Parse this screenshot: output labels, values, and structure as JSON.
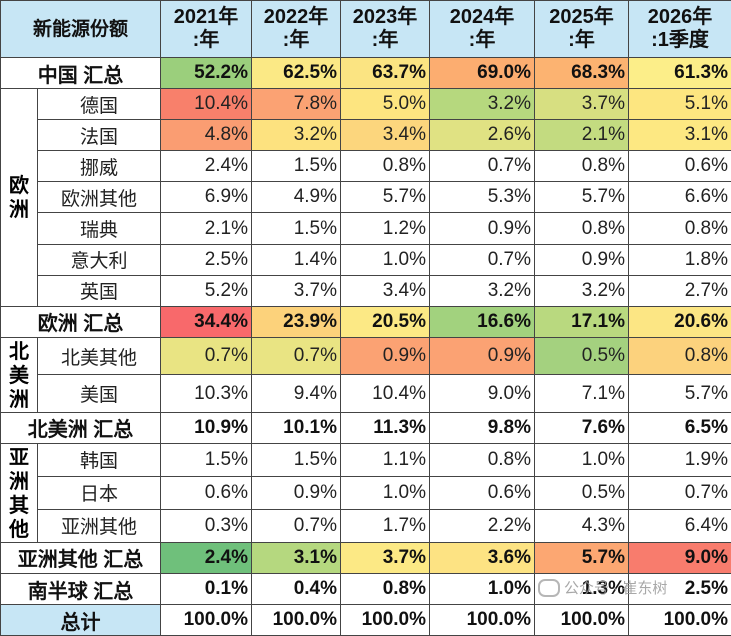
{
  "header": {
    "corner": "新能源份额",
    "columns": [
      {
        "line1": "2021年",
        "line2": ":年"
      },
      {
        "line1": "2022年",
        "line2": ":年"
      },
      {
        "line1": "2023年",
        "line2": ":年"
      },
      {
        "line1": "2024年",
        "line2": ":年"
      },
      {
        "line1": "2025年",
        "line2": ":年"
      },
      {
        "line1": "2026年",
        "line2": ":1季度"
      }
    ]
  },
  "rows": [
    {
      "kind": "total",
      "label": "中国 汇总",
      "values": [
        "52.2%",
        "62.5%",
        "63.7%",
        "69.0%",
        "68.3%",
        "61.3%"
      ],
      "colors": [
        "#9bcf7c",
        "#fbe985",
        "#fbe482",
        "#fcad70",
        "#fcb371",
        "#fcee89"
      ]
    },
    {
      "kind": "item",
      "group": "欧洲",
      "label": "德国",
      "values": [
        "10.4%",
        "7.8%",
        "5.0%",
        "3.2%",
        "3.7%",
        "5.1%"
      ],
      "colors": [
        "#f8806b",
        "#fba273",
        "#fde580",
        "#b6d87e",
        "#d7df81",
        "#fde680"
      ]
    },
    {
      "kind": "item",
      "group": "欧洲",
      "label": "法国",
      "values": [
        "4.8%",
        "3.2%",
        "3.4%",
        "2.6%",
        "2.1%",
        "3.1%"
      ],
      "colors": [
        "#fa9d72",
        "#fde27f",
        "#fcd67d",
        "#e0e283",
        "#c3db80",
        "#fde882"
      ]
    },
    {
      "kind": "item",
      "group": "欧洲",
      "label": "挪威",
      "values": [
        "2.4%",
        "1.5%",
        "0.8%",
        "0.7%",
        "0.8%",
        "0.6%"
      ],
      "colors": [
        "",
        "",
        "",
        "",
        "",
        ""
      ]
    },
    {
      "kind": "item",
      "group": "欧洲",
      "label": "欧洲其他",
      "values": [
        "6.9%",
        "4.9%",
        "5.7%",
        "5.3%",
        "5.7%",
        "6.6%"
      ],
      "colors": [
        "",
        "",
        "",
        "",
        "",
        ""
      ]
    },
    {
      "kind": "item",
      "group": "欧洲",
      "label": "瑞典",
      "values": [
        "2.1%",
        "1.5%",
        "1.2%",
        "0.9%",
        "0.8%",
        "0.8%"
      ],
      "colors": [
        "",
        "",
        "",
        "",
        "",
        ""
      ]
    },
    {
      "kind": "item",
      "group": "欧洲",
      "label": "意大利",
      "values": [
        "2.5%",
        "1.4%",
        "1.0%",
        "0.7%",
        "0.9%",
        "1.8%"
      ],
      "colors": [
        "",
        "",
        "",
        "",
        "",
        ""
      ]
    },
    {
      "kind": "item",
      "group": "欧洲",
      "label": "英国",
      "values": [
        "5.2%",
        "3.7%",
        "3.4%",
        "3.2%",
        "3.2%",
        "2.7%"
      ],
      "colors": [
        "",
        "",
        "",
        "",
        "",
        ""
      ]
    },
    {
      "kind": "total",
      "label": "欧洲 汇总",
      "values": [
        "34.4%",
        "23.9%",
        "20.5%",
        "16.6%",
        "17.1%",
        "20.6%"
      ],
      "colors": [
        "#f8696b",
        "#fcd27b",
        "#fce985",
        "#a2d27e",
        "#b9d97f",
        "#fce684"
      ]
    },
    {
      "kind": "item",
      "group": "北美洲",
      "label": "北美其他",
      "values": [
        "0.7%",
        "0.7%",
        "0.9%",
        "0.9%",
        "0.5%",
        "0.8%"
      ],
      "colors": [
        "#e9e483",
        "#e9e483",
        "#fba273",
        "#fba273",
        "#a4d17f",
        "#fcd27d"
      ]
    },
    {
      "kind": "item",
      "group": "北美洲",
      "label": "美国",
      "values": [
        "10.3%",
        "9.4%",
        "10.4%",
        "9.0%",
        "7.1%",
        "5.7%"
      ],
      "colors": [
        "",
        "",
        "",
        "",
        "",
        ""
      ]
    },
    {
      "kind": "total",
      "label": "北美洲 汇总",
      "values": [
        "10.9%",
        "10.1%",
        "11.3%",
        "9.8%",
        "7.6%",
        "6.5%"
      ],
      "colors": [
        "",
        "",
        "",
        "",
        "",
        ""
      ]
    },
    {
      "kind": "item",
      "group": "亚洲其他",
      "label": "韩国",
      "values": [
        "1.5%",
        "1.5%",
        "1.1%",
        "0.8%",
        "1.0%",
        "1.9%"
      ],
      "colors": [
        "",
        "",
        "",
        "",
        "",
        ""
      ]
    },
    {
      "kind": "item",
      "group": "亚洲其他",
      "label": "日本",
      "values": [
        "0.6%",
        "0.9%",
        "1.0%",
        "0.6%",
        "0.5%",
        "0.7%"
      ],
      "colors": [
        "",
        "",
        "",
        "",
        "",
        ""
      ]
    },
    {
      "kind": "item",
      "group": "亚洲其他",
      "label": "亚洲其他",
      "values": [
        "0.3%",
        "0.7%",
        "1.7%",
        "2.2%",
        "4.3%",
        "6.4%"
      ],
      "colors": [
        "",
        "",
        "",
        "",
        "",
        ""
      ]
    },
    {
      "kind": "total",
      "label": "亚洲其他 汇总",
      "values": [
        "2.4%",
        "3.1%",
        "3.7%",
        "3.6%",
        "5.7%",
        "9.0%"
      ],
      "colors": [
        "#6fc07b",
        "#b5d87f",
        "#fce985",
        "#fde383",
        "#fca772",
        "#f87c6d"
      ]
    },
    {
      "kind": "total",
      "label": "南半球 汇总",
      "values": [
        "0.1%",
        "0.4%",
        "0.8%",
        "1.0%",
        "1.3%",
        "2.5%"
      ],
      "colors": [
        "",
        "",
        "",
        "",
        "",
        ""
      ]
    },
    {
      "kind": "grand",
      "label": "总计",
      "values": [
        "100.0%",
        "100.0%",
        "100.0%",
        "100.0%",
        "100.0%",
        "100.0%"
      ],
      "colors": [
        "",
        "",
        "",
        "",
        "",
        ""
      ]
    }
  ],
  "groups": {
    "欧洲": {
      "text": "欧洲",
      "lines": [
        "欧",
        "洲"
      ]
    },
    "北美洲": {
      "text": "北美洲",
      "lines": [
        "北",
        "美",
        "洲"
      ]
    },
    "亚洲其他": {
      "text": "亚洲其他",
      "lines": [
        "亚",
        "洲",
        "其",
        "他"
      ]
    }
  },
  "watermark": {
    "text": "公众号 · 崔东树"
  },
  "theme": {
    "header_bg": "#c7e6f5"
  }
}
